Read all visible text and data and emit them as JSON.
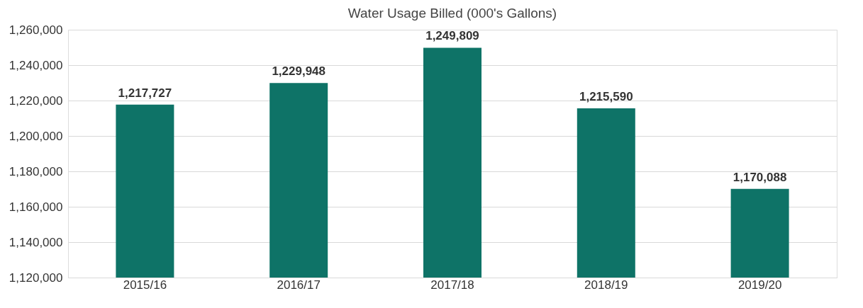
{
  "chart_data": {
    "type": "bar",
    "title": "Water Usage Billed (000's Gallons)",
    "categories": [
      "2015/16",
      "2016/17",
      "2017/18",
      "2018/19",
      "2019/20"
    ],
    "values": [
      1217727,
      1229948,
      1249809,
      1215590,
      1170088
    ],
    "value_labels": [
      "1,217,727",
      "1,229,948",
      "1,249,809",
      "1,215,590",
      "1,170,088"
    ],
    "color": "#0e7367",
    "ylim": [
      1120000,
      1260000
    ],
    "yticks": [
      {
        "value": 1120000,
        "label": "1,120,000"
      },
      {
        "value": 1140000,
        "label": "1,140,000"
      },
      {
        "value": 1160000,
        "label": "1,160,000"
      },
      {
        "value": 1180000,
        "label": "1,180,000"
      },
      {
        "value": 1200000,
        "label": "1,200,000"
      },
      {
        "value": 1220000,
        "label": "1,220,000"
      },
      {
        "value": 1240000,
        "label": "1,240,000"
      },
      {
        "value": 1260000,
        "label": "1,260,000"
      }
    ],
    "grid": "y"
  }
}
